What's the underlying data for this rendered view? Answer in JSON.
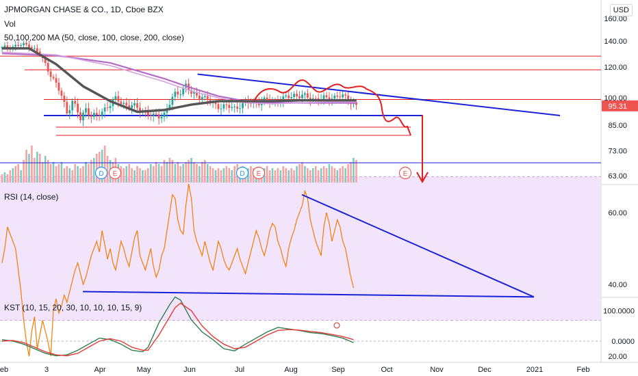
{
  "currency": "USD",
  "legends": {
    "main": "JPMORGAN CHASE & CO., 1D, Cboe BZX",
    "vol": "Vol",
    "ma": "50,100,200 MA (50, close, 100, close, 200, close)",
    "rsi": "RSI (14, close)",
    "kst": "KST (10, 15, 20, 30, 10, 10, 10, 15, 9)"
  },
  "price_badge": "95.31",
  "colors": {
    "up": "#26a69a",
    "down": "#ef5350",
    "ma_dark": "#555555",
    "ma_purple": "#b36bc7",
    "drawing_blue": "#1a21d6",
    "drawing_red": "#e31b1b",
    "rsi_line": "#f57c00",
    "rsi_band": "#f2e4fb",
    "kst_green": "#2e7d4f",
    "kst_red": "#e53935",
    "volume_up": "#7ecbc4",
    "volume_down": "#f4a3a1"
  },
  "chart_data": [
    {
      "type": "candlestick",
      "title": "JPMORGAN CHASE & CO., 1D, Cboe BZX",
      "y_ticks": [
        "160.00",
        "140.00",
        "120.00",
        "100.00",
        "85.00",
        "73.00",
        "63.00"
      ],
      "ylim": [
        60,
        165
      ],
      "log_scale": true,
      "x_ticks": [
        "eb",
        "3",
        "Apr",
        "May",
        "Jun",
        "Jul",
        "Aug",
        "Sep",
        "Oct",
        "Nov",
        "Dec",
        "2021",
        "Feb"
      ],
      "close_path": [
        [
          0,
          134
        ],
        [
          5,
          136
        ],
        [
          10,
          137
        ],
        [
          14,
          129
        ],
        [
          18,
          115
        ],
        [
          22,
          101
        ],
        [
          24,
          92
        ],
        [
          26,
          98
        ],
        [
          29,
          88
        ],
        [
          31,
          94
        ],
        [
          33,
          90
        ],
        [
          35,
          89
        ],
        [
          38,
          94
        ],
        [
          42,
          99
        ],
        [
          46,
          96
        ],
        [
          50,
          94
        ],
        [
          53,
          92
        ],
        [
          56,
          89
        ],
        [
          60,
          91
        ],
        [
          64,
          102
        ],
        [
          66,
          104
        ],
        [
          68,
          108
        ],
        [
          70,
          102
        ],
        [
          74,
          101
        ],
        [
          78,
          96
        ],
        [
          82,
          95
        ],
        [
          86,
          94
        ],
        [
          88,
          96
        ],
        [
          92,
          97
        ],
        [
          96,
          98
        ],
        [
          100,
          98
        ],
        [
          104,
          99
        ],
        [
          108,
          102
        ],
        [
          110,
          101
        ],
        [
          114,
          100
        ],
        [
          118,
          99
        ],
        [
          121,
          100
        ],
        [
          124,
          101
        ],
        [
          127,
          100
        ],
        [
          130,
          97
        ],
        [
          131,
          95.3
        ]
      ],
      "ma_series": [
        {
          "period": 50,
          "values": [
            [
              0,
              134
            ],
            [
              10,
              134
            ],
            [
              20,
              122
            ],
            [
              30,
              107
            ],
            [
              40,
              98
            ],
            [
              50,
              92
            ],
            [
              60,
              93
            ],
            [
              70,
              96
            ],
            [
              80,
              98
            ],
            [
              90,
              98
            ],
            [
              100,
              98
            ],
            [
              110,
              98.5
            ],
            [
              120,
              98.5
            ],
            [
              131,
              98.5
            ]
          ]
        },
        {
          "period": 100,
          "values": [
            [
              0,
              131
            ],
            [
              20,
              129
            ],
            [
              40,
              121
            ],
            [
              60,
              110
            ],
            [
              70,
              104
            ],
            [
              80,
              100
            ],
            [
              90,
              97
            ],
            [
              100,
              96.5
            ],
            [
              110,
              97
            ],
            [
              120,
              97.5
            ],
            [
              131,
              97.5
            ]
          ]
        },
        {
          "period": 200,
          "values": [
            [
              0,
              130
            ],
            [
              20,
              128.5
            ],
            [
              40,
              123
            ],
            [
              60,
              112
            ],
            [
              70,
              106
            ],
            [
              80,
              101
            ],
            [
              90,
              98
            ],
            [
              100,
              97
            ],
            [
              110,
              97
            ],
            [
              120,
              97
            ],
            [
              131,
              97
            ]
          ]
        }
      ],
      "horizontal_lines": [
        128,
        118,
        99,
        90,
        84,
        80,
        68
      ],
      "trendline": [
        [
          68,
          115
        ],
        [
          198,
          90
        ]
      ],
      "red_projection": [
        [
          115,
          100
        ],
        [
          130,
          104
        ],
        [
          135,
          97
        ],
        [
          139,
          85
        ],
        [
          143,
          87
        ],
        [
          147,
          80
        ]
      ],
      "arrow_target": 63,
      "earnings_markers": [
        "D",
        "E",
        "D",
        "E",
        "E"
      ],
      "volume": [
        0.2,
        0.25,
        0.2,
        0.3,
        0.35,
        0.4,
        0.45,
        0.3,
        0.55,
        0.8,
        0.7,
        0.9,
        0.6,
        0.75,
        0.7,
        0.5,
        0.65,
        0.55,
        0.45,
        0.5,
        0.4,
        0.45,
        0.5,
        0.35,
        0.4,
        0.35,
        0.3,
        0.45,
        0.4,
        0.35,
        0.4,
        0.5,
        0.45,
        0.55,
        0.6,
        0.7,
        0.75,
        0.8,
        0.9,
        0.65,
        0.55,
        0.5,
        0.6,
        0.45,
        0.4,
        0.35,
        0.4,
        0.45,
        0.35,
        0.3,
        0.4,
        0.35,
        0.3,
        0.3,
        0.35,
        0.45,
        0.4,
        0.5,
        0.45,
        0.4,
        0.55,
        0.5,
        0.6,
        0.55,
        0.45,
        0.5,
        0.4,
        0.45,
        0.5,
        0.55,
        0.6,
        0.5,
        0.45,
        0.4,
        0.5,
        0.55,
        0.45,
        0.4,
        0.35,
        0.3,
        0.35,
        0.3,
        0.35,
        0.4,
        0.35,
        0.3,
        0.4,
        0.45,
        0.35,
        0.4,
        0.3,
        0.35,
        0.4,
        0.35,
        0.3,
        0.35,
        0.3,
        0.35,
        0.4,
        0.3,
        0.35,
        0.3,
        0.35,
        0.3,
        0.4,
        0.35,
        0.3,
        0.35,
        0.3,
        0.4,
        0.45,
        0.5,
        0.4,
        0.35,
        0.3,
        0.35,
        0.4,
        0.3,
        0.35,
        0.4,
        0.35,
        0.45,
        0.4,
        0.35,
        0.3,
        0.35,
        0.4,
        0.35,
        0.45,
        0.5,
        0.6,
        0.55
      ]
    },
    {
      "type": "line",
      "title": "RSI (14, close)",
      "y_ticks": [
        "60.00",
        "40.00",
        "20.00"
      ],
      "ylim": [
        15,
        72
      ],
      "band": [
        30,
        70
      ],
      "values": [
        46,
        50,
        56,
        54,
        52,
        50,
        44,
        38,
        30,
        24,
        20,
        27,
        31,
        22,
        26,
        30,
        27,
        24,
        20,
        33,
        36,
        32,
        34,
        37,
        35,
        38,
        41,
        44,
        46,
        43,
        40,
        42,
        45,
        48,
        50,
        52,
        49,
        55,
        51,
        47,
        50,
        46,
        44,
        48,
        52,
        50,
        47,
        45,
        49,
        53,
        55,
        48,
        46,
        44,
        47,
        50,
        45,
        42,
        44,
        48,
        50,
        55,
        60,
        65,
        64,
        58,
        55,
        54,
        62,
        68,
        64,
        55,
        52,
        50,
        48,
        52,
        49,
        46,
        44,
        48,
        52,
        50,
        47,
        45,
        44,
        46,
        48,
        50,
        47,
        45,
        43,
        46,
        49,
        52,
        55,
        53,
        50,
        48,
        51,
        55,
        57,
        56,
        52,
        50,
        47,
        45,
        50,
        53,
        55,
        58,
        60,
        62,
        66,
        64,
        58,
        55,
        52,
        50,
        48,
        56,
        60,
        57,
        52,
        55,
        58,
        56,
        52,
        50,
        46,
        42,
        39
      ],
      "support_line": [
        [
          25,
          38
        ],
        [
          171,
          36.5
        ]
      ],
      "resistance_line": [
        [
          94,
          65
        ],
        [
          171,
          36.5
        ]
      ]
    },
    {
      "type": "line",
      "title": "KST (10, 15, 20, 30, 10, 10, 10, 15, 9)",
      "y_ticks": [
        "100.0000",
        "0.0000"
      ],
      "ylim": [
        -60,
        160
      ],
      "series": [
        {
          "values": [
            [
              0,
              5
            ],
            [
              4,
              0
            ],
            [
              8,
              -10
            ],
            [
              12,
              -25
            ],
            [
              16,
              -40
            ],
            [
              20,
              -48
            ],
            [
              24,
              -45
            ],
            [
              28,
              -30
            ],
            [
              32,
              -10
            ],
            [
              36,
              10
            ],
            [
              40,
              5
            ],
            [
              44,
              -10
            ],
            [
              48,
              -30
            ],
            [
              52,
              -35
            ],
            [
              54,
              -20
            ],
            [
              58,
              60
            ],
            [
              62,
              120
            ],
            [
              64,
              145
            ],
            [
              66,
              135
            ],
            [
              70,
              70
            ],
            [
              74,
              30
            ],
            [
              78,
              5
            ],
            [
              82,
              -25
            ],
            [
              86,
              -32
            ],
            [
              90,
              -10
            ],
            [
              94,
              10
            ],
            [
              98,
              30
            ],
            [
              102,
              45
            ],
            [
              106,
              40
            ],
            [
              110,
              35
            ],
            [
              114,
              28
            ],
            [
              118,
              25
            ],
            [
              122,
              18
            ],
            [
              126,
              10
            ],
            [
              130,
              -5
            ]
          ]
        },
        {
          "values": [
            [
              0,
              0
            ],
            [
              4,
              2
            ],
            [
              8,
              -5
            ],
            [
              12,
              -20
            ],
            [
              16,
              -35
            ],
            [
              20,
              -45
            ],
            [
              24,
              -48
            ],
            [
              28,
              -40
            ],
            [
              32,
              -20
            ],
            [
              36,
              0
            ],
            [
              40,
              8
            ],
            [
              44,
              0
            ],
            [
              48,
              -20
            ],
            [
              52,
              -30
            ],
            [
              54,
              -30
            ],
            [
              58,
              20
            ],
            [
              62,
              80
            ],
            [
              64,
              110
            ],
            [
              66,
              125
            ],
            [
              70,
              100
            ],
            [
              74,
              50
            ],
            [
              78,
              15
            ],
            [
              82,
              -10
            ],
            [
              86,
              -25
            ],
            [
              90,
              -20
            ],
            [
              94,
              0
            ],
            [
              98,
              20
            ],
            [
              102,
              35
            ],
            [
              106,
              38
            ],
            [
              110,
              36
            ],
            [
              114,
              32
            ],
            [
              118,
              28
            ],
            [
              122,
              22
            ],
            [
              126,
              15
            ],
            [
              130,
              5
            ]
          ]
        }
      ],
      "marker": "E"
    }
  ]
}
